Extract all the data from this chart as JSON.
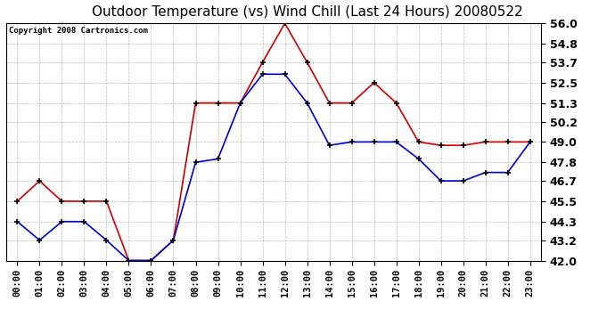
{
  "title": "Outdoor Temperature (vs) Wind Chill (Last 24 Hours) 20080522",
  "copyright": "Copyright 2008 Cartronics.com",
  "hours": [
    "00:00",
    "01:00",
    "02:00",
    "03:00",
    "04:00",
    "05:00",
    "06:00",
    "07:00",
    "08:00",
    "09:00",
    "10:00",
    "11:00",
    "12:00",
    "13:00",
    "14:00",
    "15:00",
    "16:00",
    "17:00",
    "18:00",
    "19:00",
    "20:00",
    "21:00",
    "22:00",
    "23:00"
  ],
  "temp": [
    45.5,
    46.7,
    45.5,
    45.5,
    45.5,
    42.0,
    42.0,
    43.2,
    51.3,
    51.3,
    51.3,
    53.7,
    56.0,
    53.7,
    51.3,
    51.3,
    52.5,
    51.3,
    49.0,
    48.8,
    48.8,
    49.0,
    49.0,
    49.0
  ],
  "windchill": [
    44.3,
    43.2,
    44.3,
    44.3,
    43.2,
    42.0,
    42.0,
    43.2,
    47.8,
    48.0,
    51.3,
    53.0,
    53.0,
    51.3,
    48.8,
    49.0,
    49.0,
    49.0,
    48.0,
    46.7,
    46.7,
    47.2,
    47.2,
    49.0
  ],
  "temp_color": "#cc0000",
  "windchill_color": "#0000cc",
  "ylim": [
    42.0,
    56.0
  ],
  "yticks": [
    42.0,
    43.2,
    44.3,
    45.5,
    46.7,
    47.8,
    49.0,
    50.2,
    51.3,
    52.5,
    53.7,
    54.8,
    56.0
  ],
  "ytick_labels": [
    "42.0",
    "43.2",
    "44.3",
    "45.5",
    "46.7",
    "47.8",
    "49.0",
    "50.2",
    "51.3",
    "52.5",
    "53.7",
    "54.8",
    "56.0"
  ],
  "background_color": "#ffffff",
  "plot_bg": "#ffffff",
  "grid_color": "#aaaaaa",
  "title_fontsize": 11,
  "copyright_fontsize": 6.5,
  "xtick_fontsize": 7.5,
  "ytick_fontsize": 9,
  "marker": "+",
  "markersize": 5,
  "markeredgewidth": 1.2,
  "linewidth": 1.2
}
